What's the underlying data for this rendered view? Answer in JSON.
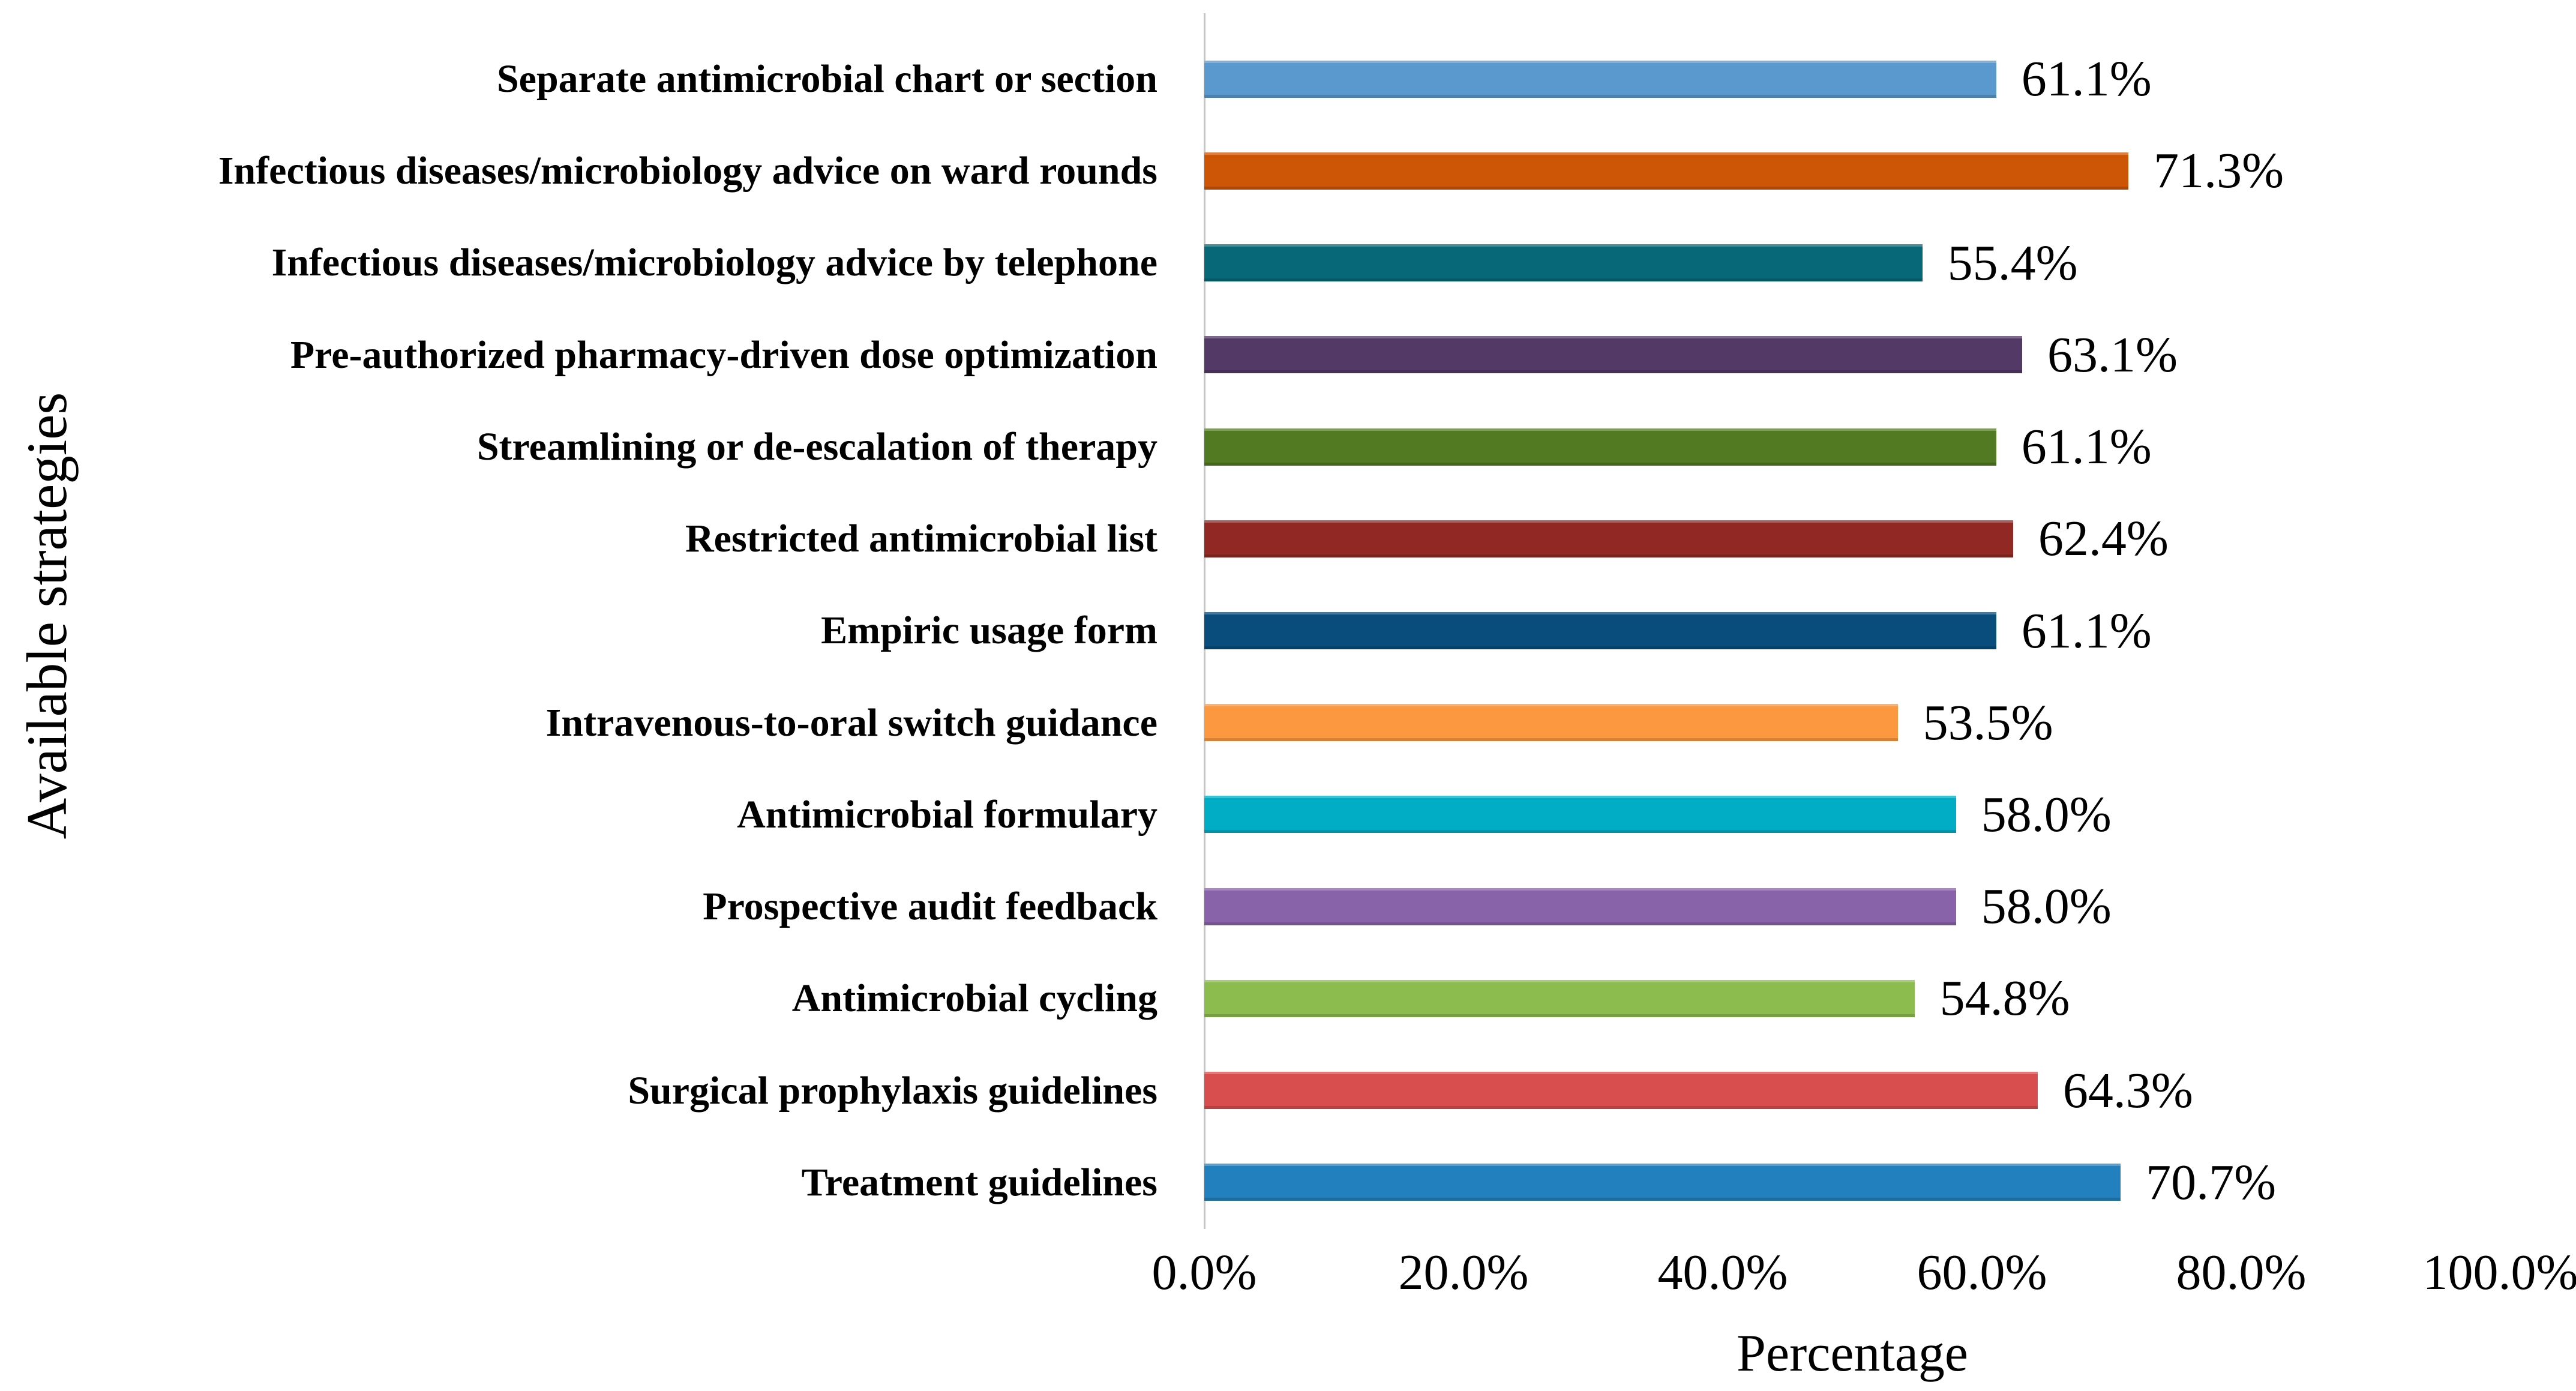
{
  "chart_data": {
    "type": "bar",
    "orientation": "horizontal",
    "title": "",
    "xlabel": "Percentage",
    "ylabel": "Available strategies",
    "xlim": [
      0,
      100
    ],
    "grid": false,
    "legend": false,
    "background": "#FFFFFF",
    "axis_line_color": "#C6C6C6",
    "text_color": "#000000",
    "x_ticks": {
      "values": [
        0,
        20,
        40,
        60,
        80,
        100
      ],
      "labels": [
        "0.0%",
        "20.0%",
        "40.0%",
        "60.0%",
        "80.0%",
        "100.0%"
      ]
    },
    "categories": [
      "Separate antimicrobial chart or section",
      "Infectious diseases/microbiology advice on ward rounds",
      "Infectious diseases/microbiology advice by telephone",
      "Pre-authorized pharmacy-driven dose optimization",
      "Streamlining or de-escalation of therapy",
      "Restricted antimicrobial list",
      "Empiric usage form",
      "Intravenous-to-oral switch guidance",
      "Antimicrobial formulary",
      "Prospective audit feedback",
      "Antimicrobial cycling",
      "Surgical prophylaxis guidelines",
      "Treatment guidelines"
    ],
    "values": [
      61.1,
      71.3,
      55.4,
      63.1,
      61.1,
      62.4,
      61.1,
      53.5,
      58.0,
      58.0,
      54.8,
      64.3,
      70.7
    ],
    "value_labels": [
      "61.1%",
      "71.3%",
      "55.4%",
      "63.1%",
      "61.1%",
      "62.4%",
      "61.1%",
      "53.5%",
      "58.0%",
      "58.0%",
      "54.8%",
      "64.3%",
      "70.7%"
    ],
    "colors": [
      "#5999CE",
      "#CC5506",
      "#076877",
      "#533A66",
      "#527A23",
      "#912823",
      "#084D7C",
      "#FC9840",
      "#00ADC5",
      "#8963A9",
      "#8BBC4D",
      "#D84D4D",
      "#2280BF"
    ]
  }
}
